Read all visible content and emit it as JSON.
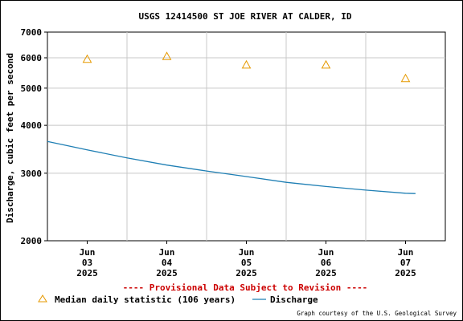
{
  "chart_data": {
    "type": "line",
    "title": "USGS 12414500 ST JOE RIVER AT CALDER, ID",
    "ylabel": "Discharge, cubic feet per second",
    "xlabel": "",
    "y_scale": "log",
    "ylim": [
      2000,
      7000
    ],
    "y_ticks": [
      2000,
      3000,
      4000,
      5000,
      6000,
      7000
    ],
    "y_tick_labels": [
      "2000",
      "3000",
      "4000",
      "5000",
      "6000",
      "7000"
    ],
    "x_range": [
      "2025-06-02 12:00",
      "2025-06-07 12:00"
    ],
    "x_ticks": [
      {
        "date": "2025-06-03",
        "label": [
          "Jun",
          "03",
          "2025"
        ]
      },
      {
        "date": "2025-06-04",
        "label": [
          "Jun",
          "04",
          "2025"
        ]
      },
      {
        "date": "2025-06-05",
        "label": [
          "Jun",
          "05",
          "2025"
        ]
      },
      {
        "date": "2025-06-06",
        "label": [
          "Jun",
          "06",
          "2025"
        ]
      },
      {
        "date": "2025-06-07",
        "label": [
          "Jun",
          "07",
          "2025"
        ]
      }
    ],
    "grid": true,
    "series": [
      {
        "name": "Discharge",
        "kind": "line",
        "color": "#1f7fb4",
        "points": [
          {
            "x": "2025-06-02 12:00",
            "y": 3630
          },
          {
            "x": "2025-06-03 00:00",
            "y": 3450
          },
          {
            "x": "2025-06-03 12:00",
            "y": 3290
          },
          {
            "x": "2025-06-04 00:00",
            "y": 3150
          },
          {
            "x": "2025-06-04 12:00",
            "y": 3040
          },
          {
            "x": "2025-06-05 00:00",
            "y": 2940
          },
          {
            "x": "2025-06-05 12:00",
            "y": 2840
          },
          {
            "x": "2025-06-06 00:00",
            "y": 2770
          },
          {
            "x": "2025-06-06 12:00",
            "y": 2710
          },
          {
            "x": "2025-06-07 00:00",
            "y": 2660
          },
          {
            "x": "2025-06-07 03:00",
            "y": 2655
          }
        ]
      },
      {
        "name": "Median daily statistic (106 years)",
        "kind": "marker",
        "marker": "triangle",
        "color": "#e69900",
        "points": [
          {
            "x": "2025-06-03",
            "y": 5950
          },
          {
            "x": "2025-06-04",
            "y": 6050
          },
          {
            "x": "2025-06-05",
            "y": 5750
          },
          {
            "x": "2025-06-06",
            "y": 5750
          },
          {
            "x": "2025-06-07",
            "y": 5300
          }
        ]
      }
    ],
    "legend": {
      "placement": "bottom",
      "items": [
        "Median daily statistic (106 years)",
        "Discharge"
      ]
    },
    "provisional_notice": "---- Provisional Data Subject to Revision ----",
    "provisional_color": "#cc0000",
    "credit": "Graph courtesy of the U.S. Geological Survey"
  }
}
